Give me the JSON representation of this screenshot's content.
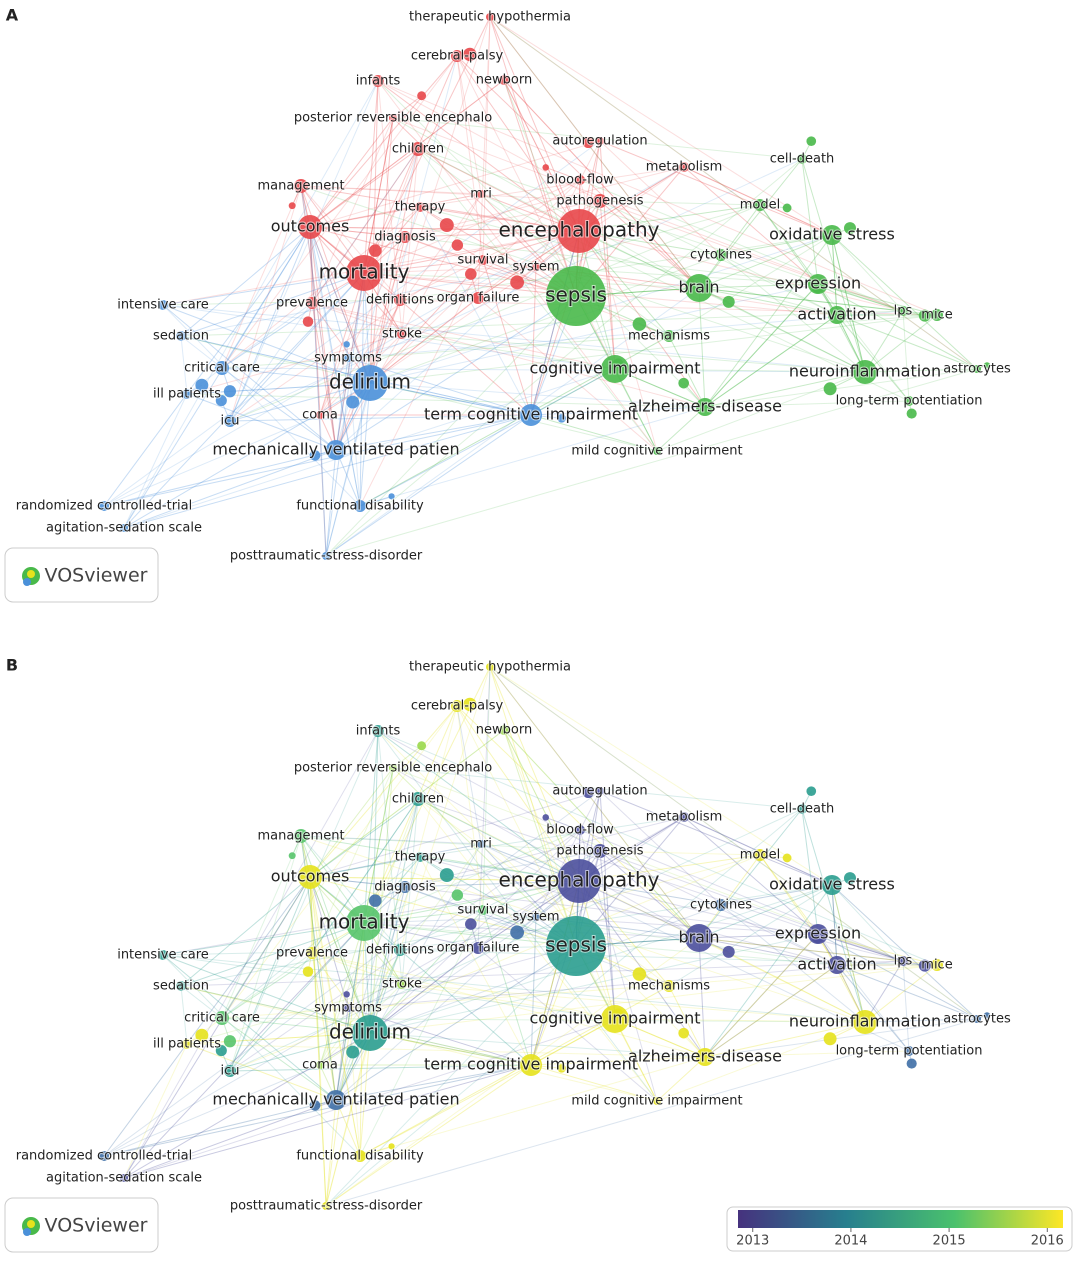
{
  "panels": [
    {
      "label": "A",
      "logo": "VOSviewer",
      "nodes": [
        {
          "label": "therapeutic hypothermia",
          "color": "#e8474a"
        },
        {
          "label": "cerebral-palsy",
          "color": "#e8474a"
        },
        {
          "label": "infants",
          "color": "#e8474a"
        },
        {
          "label": "newborn",
          "color": "#e8474a"
        },
        {
          "label": "posterior reversible encephalo",
          "color": "#e8474a"
        },
        {
          "label": "autoregulation",
          "color": "#e8474a"
        },
        {
          "label": "children",
          "color": "#e8474a"
        },
        {
          "label": "metabolism",
          "color": "#e8474a"
        },
        {
          "label": "cell-death",
          "color": "#49b94a"
        },
        {
          "label": "blood-flow",
          "color": "#e8474a"
        },
        {
          "label": "management",
          "color": "#e8474a"
        },
        {
          "label": "mri",
          "color": "#e8474a"
        },
        {
          "label": "pathogenesis",
          "color": "#e8474a"
        },
        {
          "label": "therapy",
          "color": "#e8474a"
        },
        {
          "label": "model",
          "color": "#49b94a"
        },
        {
          "label": "outcomes",
          "color": "#e8474a"
        },
        {
          "label": "encephalopathy",
          "color": "#e8474a"
        },
        {
          "label": "oxidative stress",
          "color": "#49b94a"
        },
        {
          "label": "diagnosis",
          "color": "#e8474a"
        },
        {
          "label": "cytokines",
          "color": "#49b94a"
        },
        {
          "label": "survival",
          "color": "#e8474a"
        },
        {
          "label": "system",
          "color": "#e8474a"
        },
        {
          "label": "mortality",
          "color": "#e8474a"
        },
        {
          "label": "brain",
          "color": "#49b94a"
        },
        {
          "label": "expression",
          "color": "#49b94a"
        },
        {
          "label": "sepsis",
          "color": "#49b94a"
        },
        {
          "label": "intensive care",
          "color": "#4a90d9"
        },
        {
          "label": "prevalence",
          "color": "#e8474a"
        },
        {
          "label": "definitions",
          "color": "#e8474a"
        },
        {
          "label": "organ failure",
          "color": "#e8474a"
        },
        {
          "label": "lps",
          "color": "#49b94a"
        },
        {
          "label": "mice",
          "color": "#49b94a"
        },
        {
          "label": "activation",
          "color": "#49b94a"
        },
        {
          "label": "sedation",
          "color": "#4a90d9"
        },
        {
          "label": "stroke",
          "color": "#e8474a"
        },
        {
          "label": "mechanisms",
          "color": "#49b94a"
        },
        {
          "label": "symptoms",
          "color": "#4a90d9"
        },
        {
          "label": "critical care",
          "color": "#4a90d9"
        },
        {
          "label": "cognitive impairment",
          "color": "#49b94a"
        },
        {
          "label": "neuroinflammation",
          "color": "#49b94a"
        },
        {
          "label": "astrocytes",
          "color": "#49b94a"
        },
        {
          "label": "delirium",
          "color": "#4a90d9"
        },
        {
          "label": "ill patients",
          "color": "#4a90d9"
        },
        {
          "label": "alzheimers-disease",
          "color": "#49b94a"
        },
        {
          "label": "long-term potentiation",
          "color": "#49b94a"
        },
        {
          "label": "term cognitive impairment",
          "color": "#4a90d9"
        },
        {
          "label": "coma",
          "color": "#e8474a"
        },
        {
          "label": "icu",
          "color": "#4a90d9"
        },
        {
          "label": "mechanically ventilated patien",
          "color": "#4a90d9"
        },
        {
          "label": "mild cognitive impairment",
          "color": "#49b94a"
        },
        {
          "label": "randomized controlled-trial",
          "color": "#4a90d9"
        },
        {
          "label": "functional disability",
          "color": "#4a90d9"
        },
        {
          "label": "agitation-sedation scale",
          "color": "#4a90d9"
        },
        {
          "label": "posttraumatic-stress-disorder",
          "color": "#4a90d9"
        }
      ]
    },
    {
      "label": "B",
      "logo": "VOSviewer",
      "nodes": [
        {
          "label": "therapeutic hypothermia",
          "color": "#e6e21c"
        },
        {
          "label": "cerebral-palsy",
          "color": "#e6e21c"
        },
        {
          "label": "infants",
          "color": "#2a9d8f"
        },
        {
          "label": "newborn",
          "color": "#9ad84a"
        },
        {
          "label": "posterior reversible encephalo",
          "color": "#9ad84a"
        },
        {
          "label": "autoregulation",
          "color": "#4b4f9c"
        },
        {
          "label": "children",
          "color": "#2a9d8f"
        },
        {
          "label": "metabolism",
          "color": "#4b4f9c"
        },
        {
          "label": "cell-death",
          "color": "#2a9d8f"
        },
        {
          "label": "blood-flow",
          "color": "#4b4f9c"
        },
        {
          "label": "management",
          "color": "#57c46a"
        },
        {
          "label": "mri",
          "color": "#3f6fa6"
        },
        {
          "label": "pathogenesis",
          "color": "#4b4f9c"
        },
        {
          "label": "therapy",
          "color": "#2a9d8f"
        },
        {
          "label": "model",
          "color": "#e6e21c"
        },
        {
          "label": "outcomes",
          "color": "#e6e21c"
        },
        {
          "label": "encephalopathy",
          "color": "#4b4f9c"
        },
        {
          "label": "oxidative stress",
          "color": "#2a9d8f"
        },
        {
          "label": "diagnosis",
          "color": "#3f6fa6"
        },
        {
          "label": "cytokines",
          "color": "#3f6fa6"
        },
        {
          "label": "survival",
          "color": "#57c46a"
        },
        {
          "label": "system",
          "color": "#3f6fa6"
        },
        {
          "label": "mortality",
          "color": "#57c46a"
        },
        {
          "label": "brain",
          "color": "#4b4f9c"
        },
        {
          "label": "expression",
          "color": "#4b4f9c"
        },
        {
          "label": "sepsis",
          "color": "#2a9d8f"
        },
        {
          "label": "intensive care",
          "color": "#2a9d8f"
        },
        {
          "label": "prevalence",
          "color": "#e6e21c"
        },
        {
          "label": "definitions",
          "color": "#2a9d8f"
        },
        {
          "label": "organ failure",
          "color": "#4b4f9c"
        },
        {
          "label": "lps",
          "color": "#4b4f9c"
        },
        {
          "label": "mice",
          "color": "#e6e21c"
        },
        {
          "label": "activation",
          "color": "#4b4f9c"
        },
        {
          "label": "sedation",
          "color": "#2a9d8f"
        },
        {
          "label": "stroke",
          "color": "#9ad84a"
        },
        {
          "label": "mechanisms",
          "color": "#e6e21c"
        },
        {
          "label": "symptoms",
          "color": "#4b4f9c"
        },
        {
          "label": "critical care",
          "color": "#57c46a"
        },
        {
          "label": "cognitive impairment",
          "color": "#e6e21c"
        },
        {
          "label": "neuroinflammation",
          "color": "#e6e21c"
        },
        {
          "label": "astrocytes",
          "color": "#3f6fa6"
        },
        {
          "label": "delirium",
          "color": "#2a9d8f"
        },
        {
          "label": "ill patients",
          "color": "#e6e21c"
        },
        {
          "label": "alzheimers-disease",
          "color": "#e6e21c"
        },
        {
          "label": "long-term potentiation",
          "color": "#3f6fa6"
        },
        {
          "label": "term cognitive impairment",
          "color": "#e6e21c"
        },
        {
          "label": "coma",
          "color": "#9ad84a"
        },
        {
          "label": "icu",
          "color": "#2a9d8f"
        },
        {
          "label": "mechanically ventilated patien",
          "color": "#3f6fa6"
        },
        {
          "label": "mild cognitive impairment",
          "color": "#e6e21c"
        },
        {
          "label": "randomized controlled-trial",
          "color": "#3f6fa6"
        },
        {
          "label": "functional disability",
          "color": "#e6e21c"
        },
        {
          "label": "agitation-sedation scale",
          "color": "#4b4f9c"
        },
        {
          "label": "posttraumatic-stress-disorder",
          "color": "#e6e21c"
        }
      ],
      "colorbar": {
        "colors": [
          "#46327e",
          "#277f8e",
          "#4ac16d",
          "#fde725"
        ],
        "lim": [
          2012.85,
          2016.16
        ],
        "ticks": [
          2013,
          2014,
          2015,
          2016
        ]
      }
    }
  ]
}
